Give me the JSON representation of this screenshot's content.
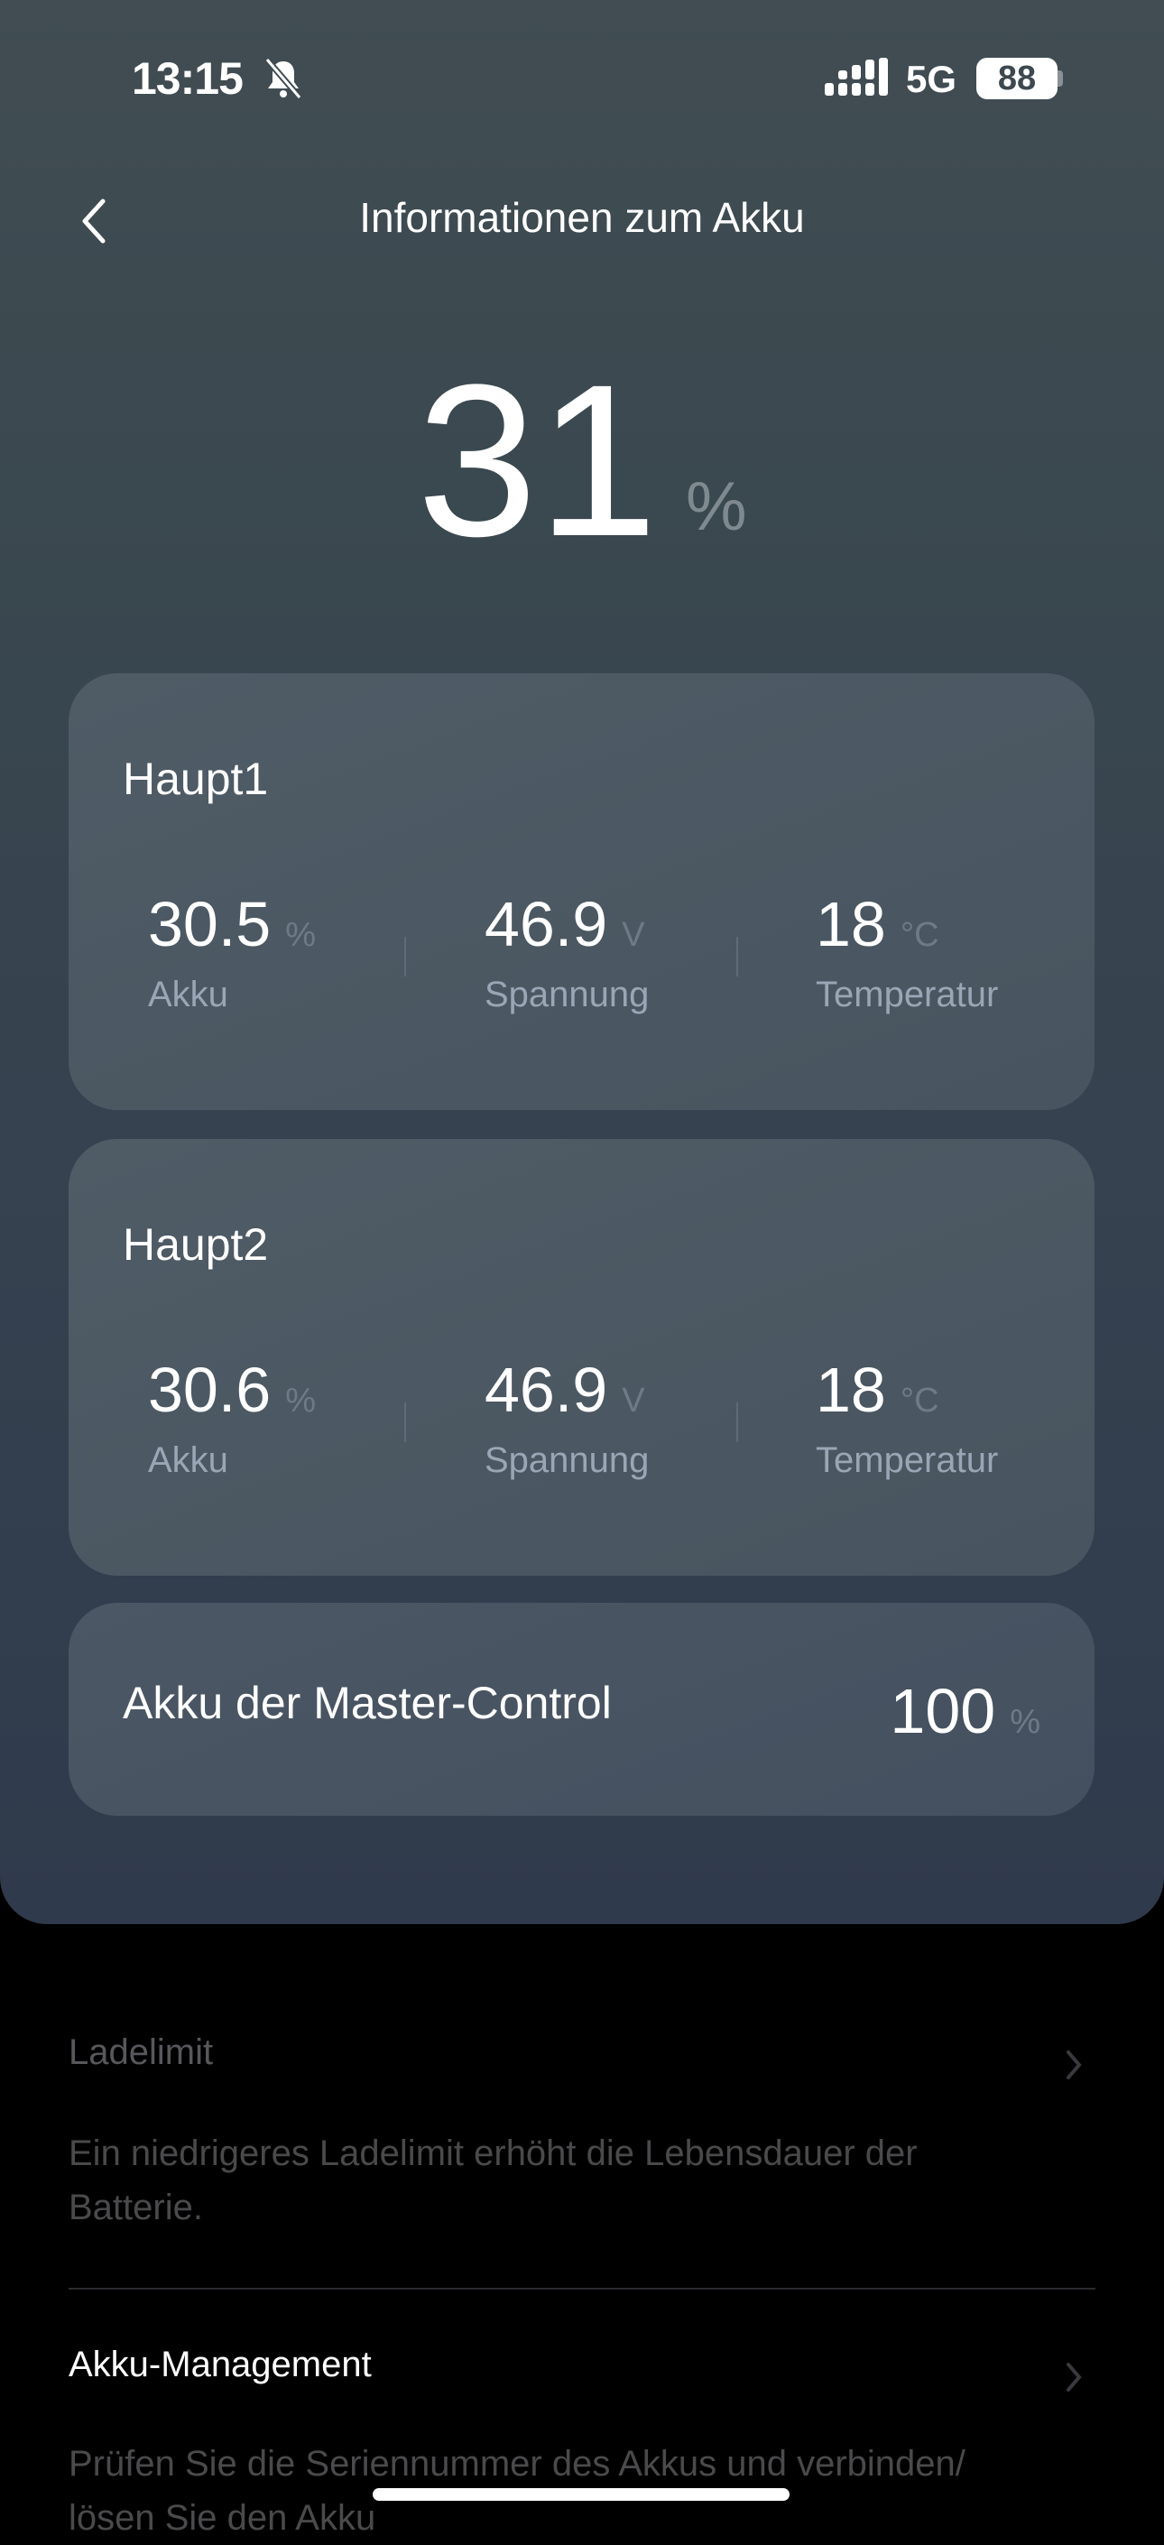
{
  "status_bar": {
    "time": "13:15",
    "network": "5G",
    "battery": "88",
    "icons": [
      "bell-slash-icon",
      "signal-icon"
    ]
  },
  "header": {
    "title": "Informationen zum Akku",
    "back_icon": "chevron-left-icon"
  },
  "overall": {
    "value": "31",
    "unit": "%"
  },
  "packs": [
    {
      "name": "Haupt1",
      "metrics": [
        {
          "value": "30.5",
          "unit": "%",
          "label": "Akku"
        },
        {
          "value": "46.9",
          "unit": "V",
          "label": "Spannung"
        },
        {
          "value": "18",
          "unit": "°C",
          "label": "Temperatur"
        }
      ]
    },
    {
      "name": "Haupt2",
      "metrics": [
        {
          "value": "30.6",
          "unit": "%",
          "label": "Akku"
        },
        {
          "value": "46.9",
          "unit": "V",
          "label": "Spannung"
        },
        {
          "value": "18",
          "unit": "°C",
          "label": "Temperatur"
        }
      ]
    }
  ],
  "master": {
    "label": "Akku der Master-Control",
    "value": "100",
    "unit": "%"
  },
  "settings": [
    {
      "title": "Ladelimit",
      "description": "Ein niedrigeres Ladelimit erhöht die Lebensdauer der Batterie.",
      "enabled": false
    },
    {
      "title": "Akku-Management",
      "description": "Prüfen Sie die Seriennummer des Akkus und verbinden/ lösen Sie den Akku",
      "enabled": true
    }
  ],
  "colors": {
    "panel_top": "#414d52",
    "panel_bottom": "#2f3a4c",
    "card": "#4b5863",
    "label": "#9ca5b5",
    "unit": "#6e7a86"
  }
}
